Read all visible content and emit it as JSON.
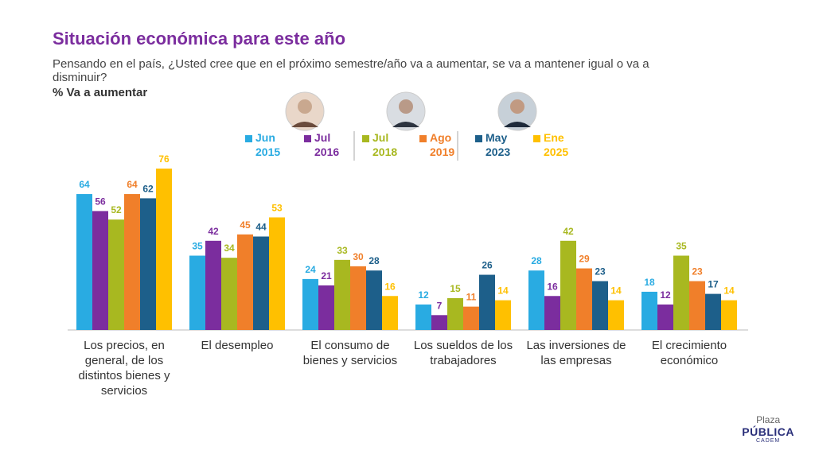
{
  "chart_data": {
    "type": "bar",
    "title": "Situación económica para este año",
    "subtitle": "Pensando en el país, ¿Usted cree que en el próximo semestre/año va a aumentar, se va a mantener igual o va a disminuir?",
    "metric_label": "% Va a aumentar",
    "categories": [
      "Los precios, en general, de los distintos bienes y servicios",
      "El desempleo",
      "El consumo de bienes y servicios",
      "Los sueldos de los trabajadores",
      "Las inversiones de las empresas",
      "El crecimiento económico"
    ],
    "series": [
      {
        "name": "Jun 2015",
        "color": "#29abe2",
        "values": [
          64,
          35,
          24,
          12,
          28,
          18
        ]
      },
      {
        "name": "Jul 2016",
        "color": "#7b2d9e",
        "values": [
          56,
          42,
          21,
          7,
          16,
          12
        ]
      },
      {
        "name": "Jul 2018",
        "color": "#a8b820",
        "values": [
          52,
          34,
          33,
          15,
          42,
          35
        ]
      },
      {
        "name": "Ago 2019",
        "color": "#f07f2a",
        "values": [
          64,
          45,
          30,
          11,
          29,
          23
        ]
      },
      {
        "name": "May 2023",
        "color": "#1d5f8a",
        "values": [
          62,
          44,
          28,
          26,
          23,
          17
        ]
      },
      {
        "name": "Ene 2025",
        "color": "#ffc000",
        "values": [
          76,
          53,
          16,
          14,
          14,
          14
        ]
      }
    ]
  },
  "logo": {
    "top": "Plaza",
    "main": "PÚBLICA",
    "bottom": "CADEM"
  }
}
